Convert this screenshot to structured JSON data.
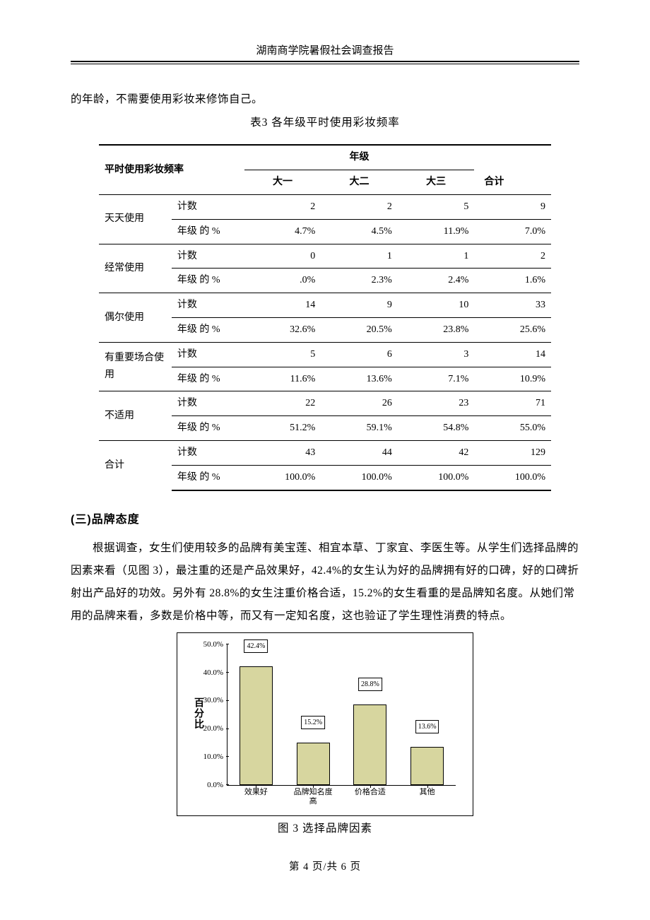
{
  "header": {
    "title": "湖南商学院暑假社会调查报告"
  },
  "leadin": {
    "text": "的年龄，不需要使用彩妆来修饰自己。"
  },
  "table3": {
    "title": "表3 各年级平时使用彩妆频率",
    "corner": "平时使用彩妆频率",
    "group_header": "年级",
    "col_headers": [
      "大一",
      "大二",
      "大三"
    ],
    "total_header": "合计",
    "sub_count": "计数",
    "sub_pct": "年级 的 %",
    "rows": [
      {
        "label": "天天使用",
        "count": [
          "2",
          "2",
          "5",
          "9"
        ],
        "pct": [
          "4.7%",
          "4.5%",
          "11.9%",
          "7.0%"
        ]
      },
      {
        "label": "经常使用",
        "count": [
          "0",
          "1",
          "1",
          "2"
        ],
        "pct": [
          ".0%",
          "2.3%",
          "2.4%",
          "1.6%"
        ]
      },
      {
        "label": "偶尔使用",
        "count": [
          "14",
          "9",
          "10",
          "33"
        ],
        "pct": [
          "32.6%",
          "20.5%",
          "23.8%",
          "25.6%"
        ]
      },
      {
        "label": "有重要场合使用",
        "count": [
          "5",
          "6",
          "3",
          "14"
        ],
        "pct": [
          "11.6%",
          "13.6%",
          "7.1%",
          "10.9%"
        ]
      },
      {
        "label": "不适用",
        "count": [
          "22",
          "26",
          "23",
          "71"
        ],
        "pct": [
          "51.2%",
          "59.1%",
          "54.8%",
          "55.0%"
        ]
      },
      {
        "label": "合计",
        "count": [
          "43",
          "44",
          "42",
          "129"
        ],
        "pct": [
          "100.0%",
          "100.0%",
          "100.0%",
          "100.0%"
        ]
      }
    ]
  },
  "section3": {
    "heading": "(三)品牌态度",
    "para": "根据调查，女生们使用较多的品牌有美宝莲、相宜本草、丁家宜、李医生等。从学生们选择品牌的因素来看（见图 3），最注重的还是产品效果好，42.4%的女生认为好的品牌拥有好的口碑，好的口碑折射出产品好的功效。另外有 28.8%的女生注重价格合适，15.2%的女生看重的是品牌知名度。从她们常用的品牌来看，多数是价格中等，而又有一定知名度，这也验证了学生理性消费的特点。"
  },
  "figure3": {
    "type": "bar",
    "y_axis_title": "百分比",
    "ylim": [
      0,
      50
    ],
    "ytick_step": 10,
    "ytick_labels": [
      "0.0%",
      "10.0%",
      "20.0%",
      "30.0%",
      "40.0%",
      "50.0%"
    ],
    "categories": [
      "效果好",
      "品牌知名度\n高",
      "价格合适",
      "其他"
    ],
    "values": [
      42.4,
      15.2,
      28.8,
      13.6
    ],
    "value_labels": [
      "42.4%",
      "15.2%",
      "28.8%",
      "13.6%"
    ],
    "bar_color": "#d7d69f",
    "bar_border": "#000000",
    "background_color": "#ffffff",
    "label_fontsize": 11,
    "caption": "图 3 选择品牌因素"
  },
  "footer": {
    "page": "第 4 页/共 6 页"
  }
}
